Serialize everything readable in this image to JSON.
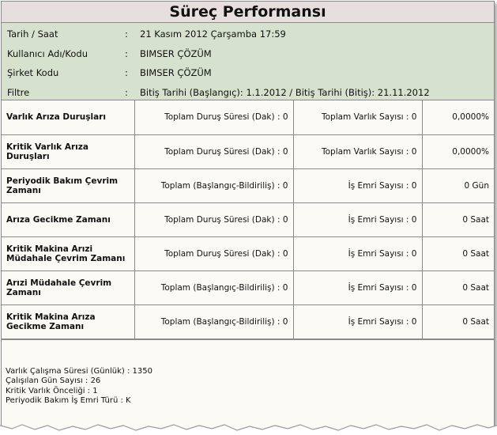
{
  "title": "Süreç Performansı",
  "info": [
    {
      "label": "Tarih / Saat",
      "value": "21 Kasım 2012 Çarşamba 17:59"
    },
    {
      "label": "Kullanıcı Adı/Kodu",
      "value": "BIMSER ÇÖZÜM"
    },
    {
      "label": "Şirket Kodu",
      "value": "BIMSER ÇÖZÜM"
    },
    {
      "label": "Filtre",
      "value": "Bitiş Tarihi (Başlangıç): 1.1.2012 / Bitiş Tarihi (Bitiş): 21.11.2012"
    }
  ],
  "colon": ":",
  "metrics": [
    {
      "name": "Varlık Arıza Duruşları",
      "col2": "Toplam Duruş Süresi (Dak) : 0",
      "col3": "Toplam Varlık Sayısı : 0",
      "col4": "0,0000%"
    },
    {
      "name": "Kritik Varlık Arıza Duruşları",
      "col2": "Toplam Duruş Süresi (Dak) : 0",
      "col3": "Toplam Varlık Sayısı : 0",
      "col4": "0,0000%"
    },
    {
      "name": "Periyodik Bakım Çevrim Zamanı",
      "col2": "Toplam (Başlangıç-Bildiriliş) : 0",
      "col3": "İş Emri Sayısı : 0",
      "col4": "0 Gün"
    },
    {
      "name": "Arıza Gecikme Zamanı",
      "col2": "Toplam Duruş Süresi (Dak) : 0",
      "col3": "İş Emri Sayısı : 0",
      "col4": "0 Saat"
    },
    {
      "name": "Kritik Makina Arızi Müdahale Çevrim Zamanı",
      "col2": "Toplam Duruş Süresi (Dak) : 0",
      "col3": "İş Emri Sayısı : 0",
      "col4": "0 Saat"
    },
    {
      "name": "Arızi Müdahale Çevrim Zamanı",
      "col2": "Toplam (Başlangıç-Bildiriliş) : 0",
      "col3": "İş Emri Sayısı : 0",
      "col4": "0 Saat"
    },
    {
      "name": "Kritik Makina Arıza Gecikme Zamanı",
      "col2": "Toplam (Başlangıç-Bildiriliş) : 0",
      "col3": "İş Emri Sayısı : 0",
      "col4": "0 Saat"
    }
  ],
  "footer": [
    "Varlık Çalışma Süresi (Günlük) : 1350",
    "Çalışılan Gün Sayısı : 26",
    "Kritik Varlık Önceliği : 1",
    "Periyodik Bakım İş Emri Türü : K"
  ]
}
